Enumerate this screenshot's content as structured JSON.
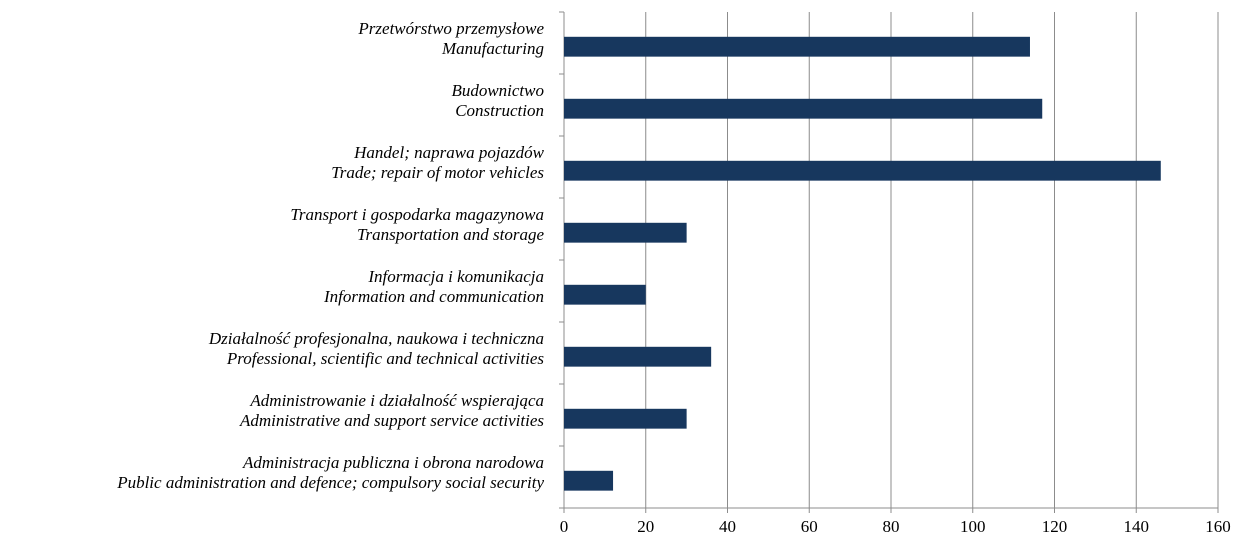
{
  "chart_data": {
    "type": "bar",
    "orientation": "horizontal",
    "categories": [
      [
        "Przetwórstwo przemysłowe",
        "Manufacturing"
      ],
      [
        "Budownictwo",
        "Construction"
      ],
      [
        "Handel; naprawa pojazdów",
        "Trade; repair of motor vehicles"
      ],
      [
        "Transport i gospodarka magazynowa",
        "Transportation and storage"
      ],
      [
        "Informacja i komunikacja",
        "Information and communication"
      ],
      [
        "Działalność profesjonalna, naukowa i techniczna",
        "Professional, scientific and technical activities"
      ],
      [
        "Administrowanie i działalność wspierająca",
        "Administrative and support service activities"
      ],
      [
        "Administracja publiczna i obrona narodowa",
        "Public administration and defence; compulsory social security"
      ]
    ],
    "values": [
      114,
      117,
      146,
      30,
      20,
      36,
      30,
      12
    ],
    "color": "#17375e",
    "xlim": [
      0,
      160
    ],
    "xticks": [
      0,
      20,
      40,
      60,
      80,
      100,
      120,
      140,
      160
    ],
    "grid": true
  }
}
